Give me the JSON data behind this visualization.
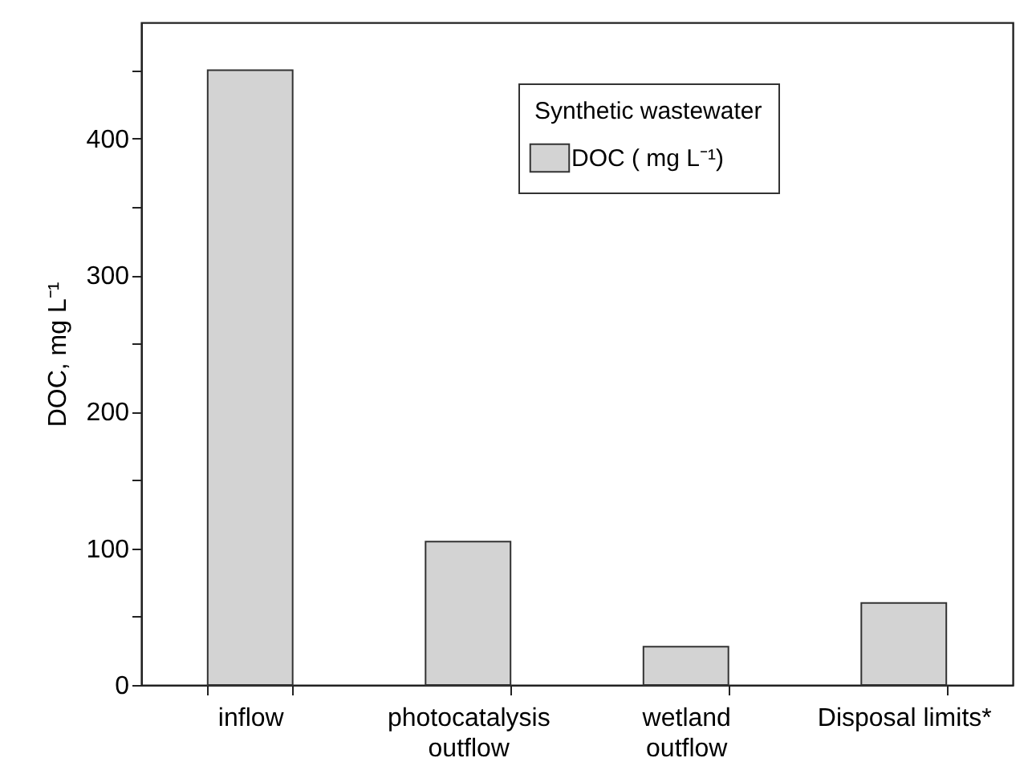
{
  "chart_data": {
    "type": "bar",
    "ylabel": "DOC, mg L⁻¹",
    "legend_title": "Synthetic wastewater",
    "categories": [
      "inflow",
      "photocatalysis\noutflow",
      "wetland\noutflow",
      "Disposal limits*"
    ],
    "series": [
      {
        "name": "DOC ( mg L⁻¹)",
        "color": "#d3d3d3",
        "values": [
          450,
          105,
          28,
          60
        ]
      }
    ],
    "ylim": [
      0,
      485
    ],
    "yticks": [
      0,
      {
        "value": 50,
        "label": null
      },
      100,
      {
        "value": 150,
        "label": null
      },
      200,
      {
        "value": 250,
        "label": null
      },
      300,
      {
        "value": 350,
        "label": null
      },
      400,
      {
        "value": 450,
        "label": null
      }
    ],
    "legend": "top right"
  }
}
